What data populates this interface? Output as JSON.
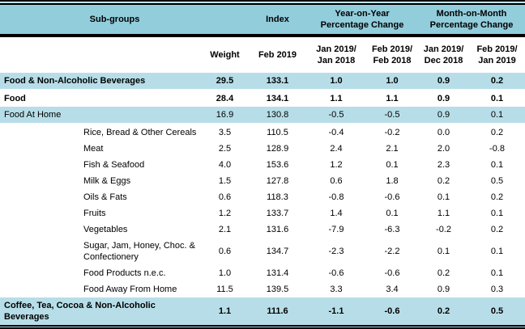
{
  "colors": {
    "header_bg": "#92CDDC",
    "shaded_row_bg": "#B7DEE8",
    "border": "#000000",
    "text": "#000000"
  },
  "table": {
    "header": {
      "subgroups": "Sub-groups",
      "index": "Index",
      "yoy": "Year-on-Year\nPercentage Change",
      "mom": "Month-on-Month\nPercentage Change",
      "sub": [
        "",
        "Weight",
        "Feb 2019",
        "Jan 2019/\nJan 2018",
        "Feb 2019/\nFeb 2018",
        "Jan 2019/\nDec 2018",
        "Feb 2019/\nJan 2019"
      ]
    },
    "rows": [
      {
        "label": "Food & Non-Alcoholic Beverages",
        "level": 0,
        "bold": true,
        "shaded": true,
        "values": [
          "29.5",
          "133.1",
          "1.0",
          "1.0",
          "0.9",
          "0.2"
        ]
      },
      {
        "label": "Food",
        "level": 0,
        "bold": true,
        "shaded": false,
        "values": [
          "28.4",
          "134.1",
          "1.1",
          "1.1",
          "0.9",
          "0.1"
        ]
      },
      {
        "label": "Food At Home",
        "level": 0,
        "bold": false,
        "shaded": true,
        "values": [
          "16.9",
          "130.8",
          "-0.5",
          "-0.5",
          "0.9",
          "0.1"
        ]
      },
      {
        "label": "Rice, Bread & Other Cereals",
        "level": 1,
        "bold": false,
        "shaded": false,
        "values": [
          "3.5",
          "110.5",
          "-0.4",
          "-0.2",
          "0.0",
          "0.2"
        ]
      },
      {
        "label": "Meat",
        "level": 1,
        "bold": false,
        "shaded": false,
        "values": [
          "2.5",
          "128.9",
          "2.4",
          "2.1",
          "2.0",
          "-0.8"
        ]
      },
      {
        "label": "Fish & Seafood",
        "level": 1,
        "bold": false,
        "shaded": false,
        "values": [
          "4.0",
          "153.6",
          "1.2",
          "0.1",
          "2.3",
          "0.1"
        ]
      },
      {
        "label": "Milk & Eggs",
        "level": 1,
        "bold": false,
        "shaded": false,
        "values": [
          "1.5",
          "127.8",
          "0.6",
          "1.8",
          "0.2",
          "0.5"
        ]
      },
      {
        "label": "Oils & Fats",
        "level": 1,
        "bold": false,
        "shaded": false,
        "values": [
          "0.6",
          "118.3",
          "-0.8",
          "-0.6",
          "0.1",
          "0.2"
        ]
      },
      {
        "label": "Fruits",
        "level": 1,
        "bold": false,
        "shaded": false,
        "values": [
          "1.2",
          "133.7",
          "1.4",
          "0.1",
          "1.1",
          "0.1"
        ]
      },
      {
        "label": "Vegetables",
        "level": 1,
        "bold": false,
        "shaded": false,
        "values": [
          "2.1",
          "131.6",
          "-7.9",
          "-6.3",
          "-0.2",
          "0.2"
        ]
      },
      {
        "label": "Sugar, Jam, Honey, Choc. & Confectionery",
        "level": 1,
        "bold": false,
        "shaded": false,
        "values": [
          "0.6",
          "134.7",
          "-2.3",
          "-2.2",
          "0.1",
          "0.1"
        ]
      },
      {
        "label": "Food Products n.e.c.",
        "level": 1,
        "bold": false,
        "shaded": false,
        "values": [
          "1.0",
          "131.4",
          "-0.6",
          "-0.6",
          "0.2",
          "0.1"
        ]
      },
      {
        "label": "Food Away From Home",
        "level": 1,
        "bold": false,
        "shaded": false,
        "values": [
          "11.5",
          "139.5",
          "3.3",
          "3.4",
          "0.9",
          "0.3"
        ]
      },
      {
        "label": "Coffee, Tea, Cocoa & Non-Alcoholic Beverages",
        "level": 0,
        "bold": true,
        "shaded": true,
        "values": [
          "1.1",
          "111.6",
          "-1.1",
          "-0.6",
          "0.2",
          "0.5"
        ]
      }
    ]
  },
  "chart_data": {
    "type": "table",
    "columns": [
      "Sub-groups",
      "Weight",
      "Index Feb 2019",
      "Year-on-Year Percentage Change Jan 2019/Jan 2018",
      "Year-on-Year Percentage Change Feb 2019/Feb 2018",
      "Month-on-Month Percentage Change Jan 2019/Dec 2018",
      "Month-on-Month Percentage Change Feb 2019/Jan 2019"
    ],
    "rows": [
      [
        "Food & Non-Alcoholic Beverages",
        29.5,
        133.1,
        1.0,
        1.0,
        0.9,
        0.2
      ],
      [
        "Food",
        28.4,
        134.1,
        1.1,
        1.1,
        0.9,
        0.1
      ],
      [
        "Food At Home",
        16.9,
        130.8,
        -0.5,
        -0.5,
        0.9,
        0.1
      ],
      [
        "Rice, Bread & Other Cereals",
        3.5,
        110.5,
        -0.4,
        -0.2,
        0.0,
        0.2
      ],
      [
        "Meat",
        2.5,
        128.9,
        2.4,
        2.1,
        2.0,
        -0.8
      ],
      [
        "Fish & Seafood",
        4.0,
        153.6,
        1.2,
        0.1,
        2.3,
        0.1
      ],
      [
        "Milk & Eggs",
        1.5,
        127.8,
        0.6,
        1.8,
        0.2,
        0.5
      ],
      [
        "Oils & Fats",
        0.6,
        118.3,
        -0.8,
        -0.6,
        0.1,
        0.2
      ],
      [
        "Fruits",
        1.2,
        133.7,
        1.4,
        0.1,
        1.1,
        0.1
      ],
      [
        "Vegetables",
        2.1,
        131.6,
        -7.9,
        -6.3,
        -0.2,
        0.2
      ],
      [
        "Sugar, Jam, Honey, Choc. & Confectionery",
        0.6,
        134.7,
        -2.3,
        -2.2,
        0.1,
        0.1
      ],
      [
        "Food Products n.e.c.",
        1.0,
        131.4,
        -0.6,
        -0.6,
        0.2,
        0.1
      ],
      [
        "Food Away From Home",
        11.5,
        139.5,
        3.3,
        3.4,
        0.9,
        0.3
      ],
      [
        "Coffee, Tea, Cocoa & Non-Alcoholic Beverages",
        1.1,
        111.6,
        -1.1,
        -0.6,
        0.2,
        0.5
      ]
    ]
  }
}
